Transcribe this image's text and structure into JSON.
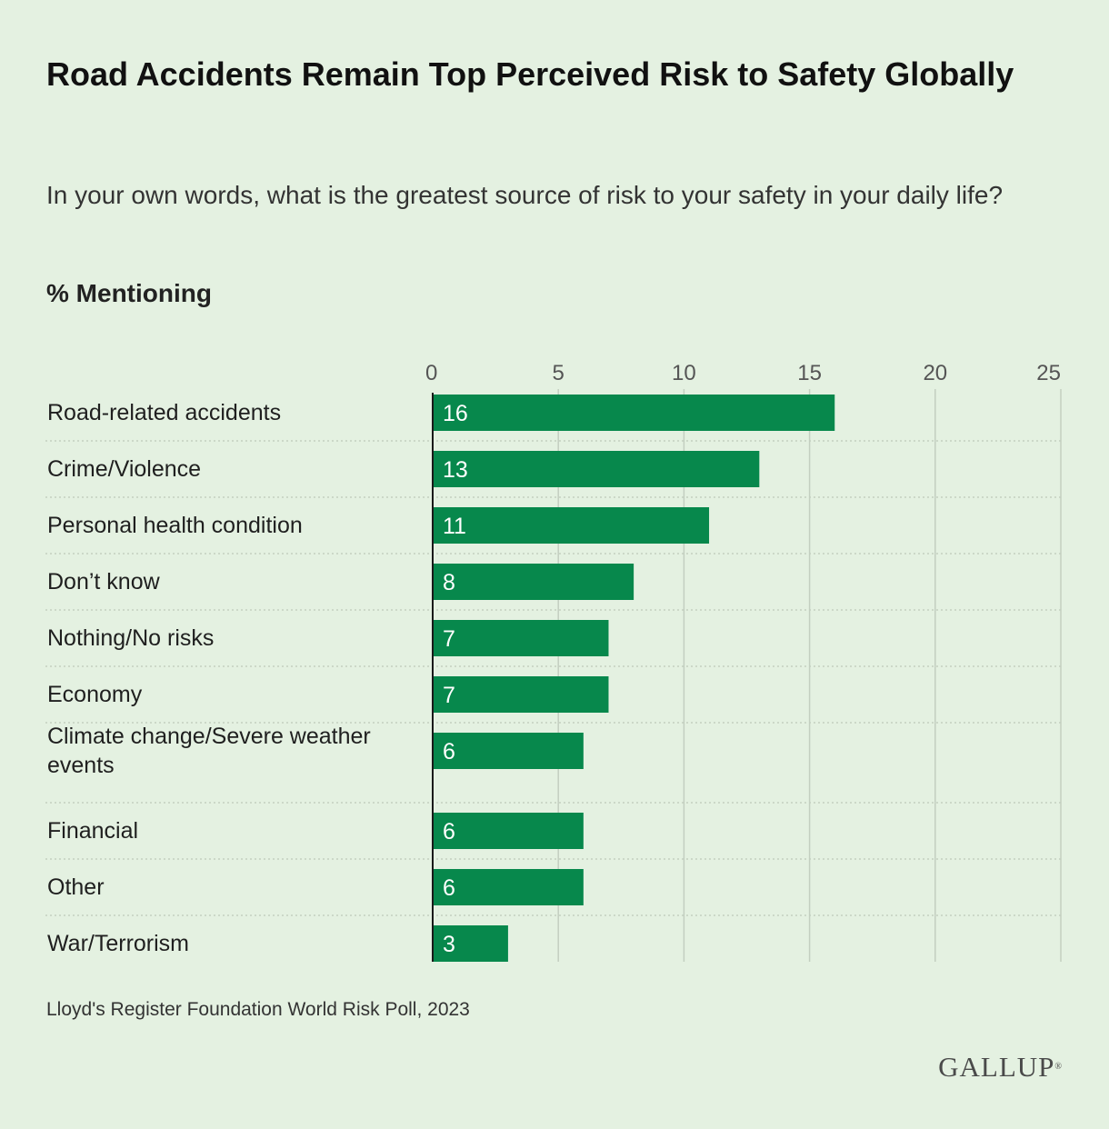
{
  "title": "Road Accidents Remain Top Perceived Risk to Safety Globally",
  "subtitle": "In your own words, what is the greatest source of risk to your safety in your daily life?",
  "units_label": "% Mentioning",
  "source": "Lloyd's Register Foundation World Risk Poll, 2023",
  "logo": "GALLUP",
  "colors": {
    "background": "#e4f1e1",
    "bar": "#07884c",
    "grid": "#c3cfc0",
    "axis": "#1a1a1a"
  },
  "chart_data": {
    "type": "bar",
    "orientation": "horizontal",
    "categories": [
      "Road-related accidents",
      "Crime/Violence",
      "Personal health condition",
      "Don’t know",
      "Nothing/No risks",
      "Economy",
      "Climate change/Severe weather events",
      "Financial",
      "Other",
      "War/Terrorism"
    ],
    "values": [
      16,
      13,
      11,
      8,
      7,
      7,
      6,
      6,
      6,
      3
    ],
    "xlim": [
      0,
      25
    ],
    "xticks": [
      0,
      5,
      10,
      15,
      20,
      25
    ],
    "xticks_position": "top",
    "grid": true,
    "data_labels": "inside-left"
  }
}
